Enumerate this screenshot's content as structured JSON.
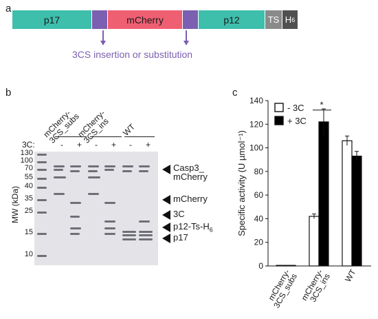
{
  "panels": {
    "a": "a",
    "b": "b",
    "c": "c"
  },
  "construct": {
    "segments": [
      {
        "label": "p17",
        "color": "#3dbfac"
      },
      {
        "label": "",
        "color": "#7b5fb0"
      },
      {
        "label": "mCherry",
        "color": "#ef5f72"
      },
      {
        "label": "",
        "color": "#7b5fb0"
      },
      {
        "label": "p12",
        "color": "#3dbfac"
      },
      {
        "label": "TS",
        "color": "#8a8a8a"
      },
      {
        "label": "H",
        "sub": "6",
        "color": "#505050"
      }
    ],
    "note": "3CS insertion or substitution"
  },
  "gel": {
    "lane_groups": [
      "mCherry-\n3CS_subs",
      "mCherry-\n3CS_ins",
      "WT"
    ],
    "treatment_label": "3C:",
    "lane_marks": [
      "-",
      "+",
      "-",
      "+",
      "-",
      "+"
    ],
    "mw_axis_label": "MW (kDa)",
    "mw_ticks": [
      "130",
      "100",
      "70",
      "55",
      "40",
      "35",
      "25",
      "15",
      "10"
    ],
    "band_labels": [
      {
        "text": "Casp3_\nmCherry"
      },
      {
        "text": "mCherry"
      },
      {
        "text": "3C"
      },
      {
        "text": "p12-Ts-H",
        "sub": "6"
      },
      {
        "text": "p17"
      }
    ]
  },
  "chart_data": {
    "type": "bar",
    "categories": [
      "mCherry-\n3CS_subs",
      "mCherry-\n3CS_ins",
      "WT"
    ],
    "series": [
      {
        "name": "- 3C",
        "color": "#ffffff",
        "values": [
          0.5,
          42,
          106
        ],
        "errors": [
          0.3,
          2,
          4
        ]
      },
      {
        "name": "+ 3C",
        "color": "#000000",
        "values": [
          0.5,
          122,
          93
        ],
        "errors": [
          0.3,
          11,
          4
        ]
      }
    ],
    "ylabel": "Specific activity (U µmol⁻¹)",
    "yticks": [
      0,
      20,
      40,
      60,
      80,
      100,
      120,
      140
    ],
    "ylim": [
      0,
      140
    ],
    "significance": "*",
    "legend": "top-left"
  }
}
